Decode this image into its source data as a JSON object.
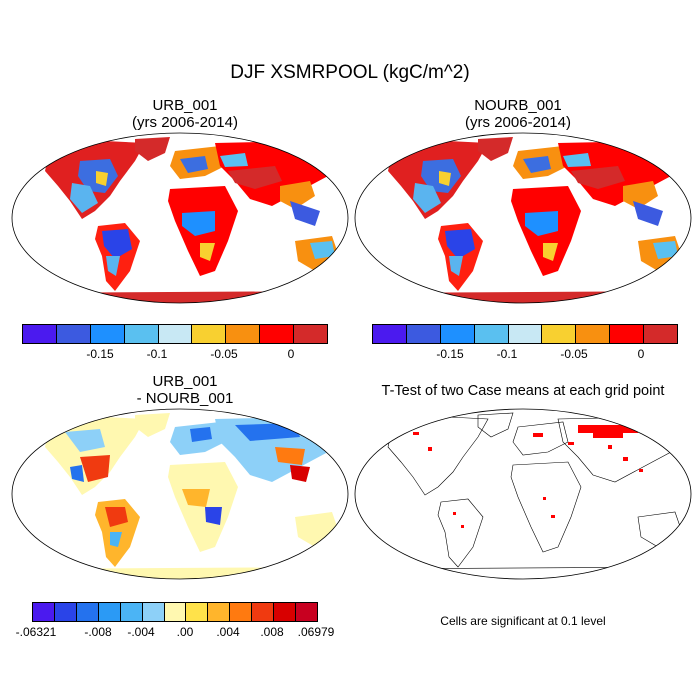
{
  "figure": {
    "title": "DJF XSMRPOOL (kgC/m^2)",
    "note": "Cells are significant at 0.1 level"
  },
  "panels": {
    "p1": {
      "title": "URB_001",
      "subtitle": "(yrs 2006-2014)"
    },
    "p2": {
      "title": "NOURB_001",
      "subtitle": "(yrs 2006-2014)"
    },
    "p3": {
      "title": "URB_001",
      "subtitle": "- NOURB_001"
    },
    "p4": {
      "title": "T-Test of two Case means at each grid point"
    }
  },
  "colorbars": {
    "main": {
      "colors": [
        "#4b1aef",
        "#3c5ae0",
        "#1e90ff",
        "#5ac0f0",
        "#c8e8f4",
        "#f8d030",
        "#f89010",
        "#ff0000",
        "#d42a2a"
      ],
      "ticks": [
        "-0.15",
        "-0.1",
        "-0.05",
        "0"
      ]
    },
    "diff": {
      "colors": [
        "#4b1aef",
        "#2a44e8",
        "#2472ee",
        "#2b9af5",
        "#4bb4f5",
        "#8dd0f8",
        "#fff8b0",
        "#ffe24a",
        "#ffb52c",
        "#ff7a10",
        "#f03a10",
        "#d80000",
        "#c80020"
      ],
      "ticks": [
        "-.06321",
        "-.008",
        "-.004",
        ".00",
        ".004",
        ".008",
        ".06979"
      ]
    }
  }
}
